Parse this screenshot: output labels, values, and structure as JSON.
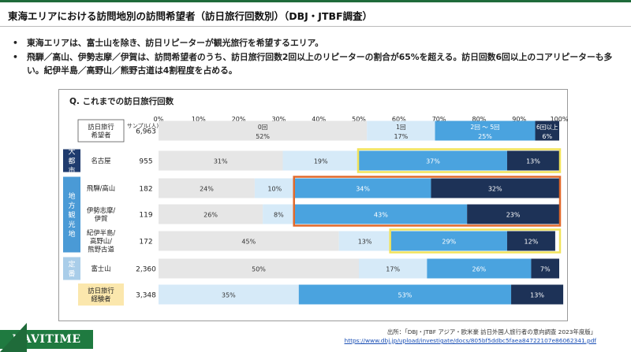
{
  "page": {
    "title": "東海エリアにおける訪問地別の訪問希望者（訪日旅行回数別）（DBJ・JTBF調査）",
    "bullets": [
      "東海エリアは、富士山を除き、訪日リピーターが観光旅行を希望するエリア。",
      "飛騨／高山、伊勢志摩／伊賀は、訪問希望者のうち、訪日旅行回数2回以上のリピーターの割合が65%を超える。訪日回数6回以上のコアリピーターも多い。紀伊半島／高野山／熊野古道は4割程度を占める。"
    ],
    "bullet_mark": "•",
    "logo": "NAVITIME",
    "source": "出所：「DBJ・JTBF アジア・欧米豪 訪日外国人旅行者の意向調査 2023年度版」",
    "source_url": "https://www.dbj.jp/upload/investigate/docs/805bf5ddbc5faea84722107e86062341.pdf"
  },
  "chart_data": {
    "type": "bar",
    "orientation": "horizontal-stacked-100",
    "title": "Q. これまでの訪日旅行回数",
    "sample_header": "サンプル(人)",
    "x_ticks": [
      "0%",
      "10%",
      "20%",
      "30%",
      "40%",
      "50%",
      "60%",
      "70%",
      "80%",
      "90%",
      "100%"
    ],
    "xlim": [
      0,
      100
    ],
    "segment_labels": [
      "0回",
      "1回",
      "2回 ～ 5回",
      "6回以上"
    ],
    "segment_colors": [
      "#e6e6e6",
      "#d6eaf8",
      "#4aa3df",
      "#1d3257"
    ],
    "groups": [
      {
        "label": "大都市",
        "color": "#1f3b6e",
        "text_color": "#ffffff",
        "rows": [
          1
        ]
      },
      {
        "label": "地方観光地",
        "color": "#4a9ad6",
        "text_color": "#ffffff",
        "rows": [
          2,
          3,
          4
        ]
      },
      {
        "label": "定番",
        "color": "#a9cde9",
        "text_color": "#ffffff",
        "rows": [
          5
        ]
      }
    ],
    "rows": [
      {
        "category": "訪日旅行\n希望者",
        "sample": "6,963",
        "values": [
          52,
          17,
          25,
          6
        ],
        "style": "boxed"
      },
      {
        "category": "名古屋",
        "sample": "955",
        "values": [
          31,
          19,
          37,
          13
        ]
      },
      {
        "category": "飛騨/高山",
        "sample": "182",
        "values": [
          24,
          10,
          34,
          32
        ]
      },
      {
        "category": "伊勢志摩/\n伊賀",
        "sample": "119",
        "values": [
          26,
          8,
          43,
          23
        ]
      },
      {
        "category": "紀伊半島/\n高野山/\n熊野古道",
        "sample": "172",
        "values": [
          45,
          13,
          29,
          12
        ]
      },
      {
        "category": "富士山",
        "sample": "2,360",
        "values": [
          50,
          17,
          26,
          7
        ]
      },
      {
        "category": "訪日旅行\n経験者",
        "sample": "3,348",
        "values": [
          0,
          35,
          53,
          13
        ],
        "style": "highlight"
      }
    ],
    "highlights": [
      {
        "rows": [
          1
        ],
        "from_segment": 2,
        "color": "#f2e35a"
      },
      {
        "rows": [
          2,
          3
        ],
        "from_segment": 2,
        "color": "#e1692b"
      },
      {
        "rows": [
          4
        ],
        "from_segment": 2,
        "color": "#f2e35a"
      }
    ]
  }
}
